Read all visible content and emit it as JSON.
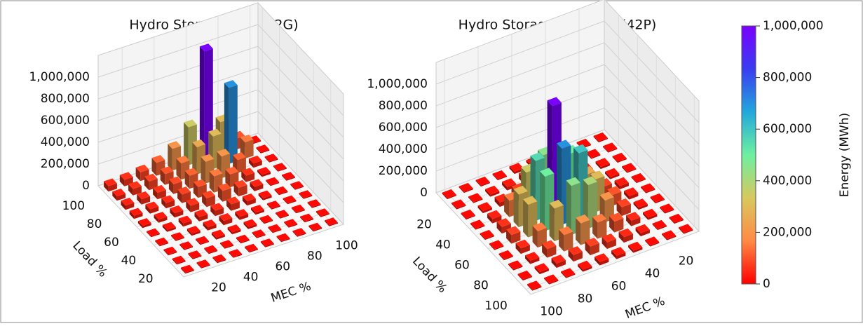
{
  "chart_data": [
    {
      "type": "bar3d",
      "title": "Hydro Storage Gen (42G)",
      "xlabel": "MEC %",
      "ylabel": "Load %",
      "x": [
        10,
        20,
        30,
        40,
        50,
        60,
        70,
        80,
        90,
        100
      ],
      "y": [
        10,
        20,
        30,
        40,
        50,
        60,
        70,
        80,
        90,
        100
      ],
      "values": [
        [
          10000,
          10000,
          10000,
          10000,
          10000,
          10000,
          10000,
          10000,
          10000,
          10000
        ],
        [
          10000,
          10000,
          10000,
          10000,
          10000,
          10000,
          10000,
          10000,
          10000,
          10000
        ],
        [
          10000,
          10000,
          10000,
          20000,
          20000,
          20000,
          10000,
          10000,
          10000,
          10000
        ],
        [
          10000,
          10000,
          20000,
          30000,
          40000,
          30000,
          20000,
          10000,
          10000,
          10000
        ],
        [
          10000,
          20000,
          30000,
          40000,
          50000,
          60000,
          40000,
          20000,
          10000,
          10000
        ],
        [
          20000,
          30000,
          40000,
          60000,
          80000,
          100000,
          80000,
          40000,
          10000,
          10000
        ],
        [
          30000,
          40000,
          50000,
          80000,
          100000,
          150000,
          120000,
          60000,
          20000,
          10000
        ],
        [
          40000,
          50000,
          60000,
          90000,
          120000,
          200000,
          200000,
          120000,
          40000,
          10000
        ],
        [
          40000,
          60000,
          80000,
          100000,
          150000,
          250000,
          300000,
          700000,
          150000,
          10000
        ],
        [
          50000,
          60000,
          80000,
          120000,
          200000,
          350000,
          1000000,
          300000,
          100000,
          10000
        ]
      ],
      "xlim": [
        5,
        105
      ],
      "ylim": [
        5,
        105
      ],
      "zlim": [
        0,
        1200000
      ],
      "xticks": [
        20,
        40,
        60,
        80,
        100
      ],
      "yticks": [
        20,
        40,
        60,
        80,
        100
      ],
      "zticks": [
        0,
        {
          "value": 200000,
          "label": "200,000"
        },
        {
          "value": 400000,
          "label": "400,000"
        },
        {
          "value": 600000,
          "label": "600,000"
        },
        {
          "value": 800000,
          "label": "800,000"
        },
        {
          "value": 1000000,
          "label": "1,000,000"
        }
      ],
      "x_reversed": false,
      "y_reversed": false,
      "grid": true
    },
    {
      "type": "bar3d",
      "title": "Hydro Storage Pumping (42P)",
      "xlabel": "MEC %",
      "ylabel": "Load %",
      "x": [
        10,
        20,
        30,
        40,
        50,
        60,
        70,
        80,
        90,
        100
      ],
      "y": [
        10,
        20,
        30,
        40,
        50,
        60,
        70,
        80,
        90,
        100
      ],
      "values": [
        [
          10000,
          10000,
          10000,
          10000,
          20000,
          20000,
          10000,
          10000,
          10000,
          10000
        ],
        [
          10000,
          10000,
          20000,
          30000,
          40000,
          50000,
          30000,
          20000,
          10000,
          10000
        ],
        [
          10000,
          20000,
          30000,
          60000,
          100000,
          150000,
          80000,
          40000,
          20000,
          10000
        ],
        [
          10000,
          20000,
          50000,
          150000,
          300000,
          450000,
          350000,
          150000,
          40000,
          10000
        ],
        [
          10000,
          30000,
          80000,
          250000,
          500000,
          1000000,
          550000,
          300000,
          60000,
          10000
        ],
        [
          10000,
          30000,
          100000,
          300000,
          600000,
          700000,
          500000,
          300000,
          80000,
          10000
        ],
        [
          10000,
          20000,
          80000,
          200000,
          400000,
          450000,
          300000,
          150000,
          50000,
          10000
        ],
        [
          10000,
          20000,
          50000,
          100000,
          150000,
          200000,
          150000,
          80000,
          30000,
          10000
        ],
        [
          10000,
          10000,
          30000,
          50000,
          60000,
          80000,
          60000,
          40000,
          20000,
          10000
        ],
        [
          10000,
          10000,
          10000,
          20000,
          30000,
          30000,
          20000,
          10000,
          10000,
          10000
        ]
      ],
      "xlim": [
        5,
        105
      ],
      "ylim": [
        5,
        105
      ],
      "zlim": [
        0,
        1200000
      ],
      "xticks": [
        20,
        40,
        60,
        80,
        100
      ],
      "yticks": [
        20,
        40,
        60,
        80,
        100
      ],
      "zticks": [
        0,
        {
          "value": 200000,
          "label": "200,000"
        },
        {
          "value": 400000,
          "label": "400,000"
        },
        {
          "value": 600000,
          "label": "600,000"
        },
        {
          "value": 800000,
          "label": "800,000"
        },
        {
          "value": 1000000,
          "label": "1,000,000"
        }
      ],
      "x_reversed": true,
      "y_reversed": true,
      "grid": true
    }
  ],
  "colorbar": {
    "label": "Energy (MWh)",
    "lim": [
      0,
      1000000
    ],
    "ticks": [
      0,
      {
        "value": 200000,
        "label": "200,000"
      },
      {
        "value": 400000,
        "label": "400,000"
      },
      {
        "value": 600000,
        "label": "600,000"
      },
      {
        "value": 800000,
        "label": "800,000"
      },
      {
        "value": 1000000,
        "label": "1,000,000"
      }
    ],
    "colors": [
      "#ff0000",
      "#ff8a45",
      "#d8c85e",
      "#6ef0a0",
      "#22a8dc",
      "#3a3cf0",
      "#7a00ff"
    ]
  }
}
